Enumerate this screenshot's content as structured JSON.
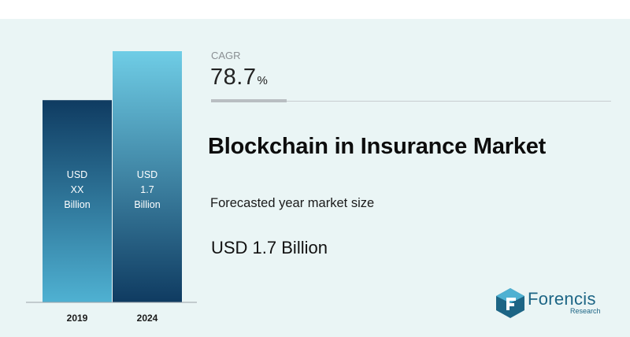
{
  "chart_data": {
    "type": "bar",
    "categories": [
      "2019",
      "2024"
    ],
    "series": [
      {
        "values": [
          null,
          1.7
        ]
      }
    ],
    "bar_labels": [
      [
        "USD",
        "XX",
        "Billion"
      ],
      [
        "USD",
        "1.7",
        "Billion"
      ]
    ],
    "ylim": [
      0,
      1.7
    ]
  },
  "colors": {
    "bar_dark_top": "#0f3b61",
    "bar_dark_bottom": "#4fb1d2",
    "bar_light_top": "#6fcde6",
    "bar_light_bottom": "#0f3b61",
    "accent": "#1d6585",
    "background": "#eaf5f5"
  },
  "cagr": {
    "label": "CAGR",
    "value": "78.7",
    "unit": "%"
  },
  "title": "Blockchain in Insurance Market",
  "forecast": {
    "label": "Forecasted year market size",
    "value": "USD 1.7 Billion"
  },
  "brand": {
    "name": "Forencis",
    "sub": "Research",
    "icon": "forencis-logo-icon"
  }
}
